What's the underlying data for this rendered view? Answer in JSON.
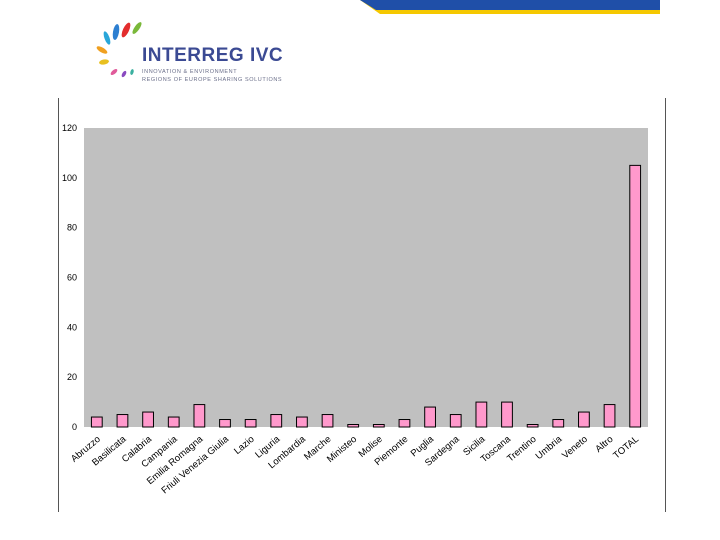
{
  "logo": {
    "title": "INTERREG IVC",
    "subtitle_line1": "INNOVATION & ENVIRONMENT",
    "subtitle_line2": "REGIONS OF EUROPE SHARING SOLUTIONS"
  },
  "colors": {
    "plot_background": "#c0c0c0",
    "bar_fill": "#ff99cc",
    "bar_stroke": "#000000",
    "banner_blue": "#1f4fa8",
    "banner_yellow": "#f5c800"
  },
  "chart_data": {
    "type": "bar",
    "title": "",
    "xlabel": "",
    "ylabel": "",
    "ylim": [
      0,
      120
    ],
    "yticks": [
      0,
      20,
      40,
      60,
      80,
      100,
      120
    ],
    "grid": false,
    "legend": "none",
    "categories": [
      "Abruzzo",
      "Basilicata",
      "Calabria",
      "Campania",
      "Emilia Romagna",
      "Friuli Venezia Giulia",
      "Lazio",
      "Liguria",
      "Lombardia",
      "Marche",
      "Ministeo",
      "Molise",
      "Piemonte",
      "Puglia",
      "Sardegna",
      "Sicilia",
      "Toscana",
      "Trentino",
      "Umbria",
      "Veneto",
      "Altro",
      "TOTAL"
    ],
    "values": [
      4,
      5,
      6,
      4,
      9,
      3,
      3,
      5,
      4,
      5,
      1,
      1,
      3,
      8,
      5,
      10,
      10,
      1,
      3,
      6,
      9,
      105
    ]
  }
}
